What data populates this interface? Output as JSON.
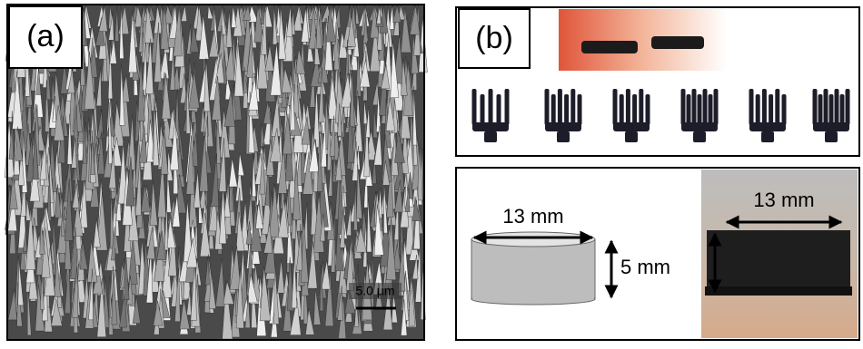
{
  "panel_a": {
    "label": "(a)",
    "scale_bar": "5.0 µm"
  },
  "panel_b": {
    "label": "(b)",
    "sketch_diameter": "13 mm",
    "sketch_height": "5 mm",
    "photo_diameter": "13 mm"
  }
}
